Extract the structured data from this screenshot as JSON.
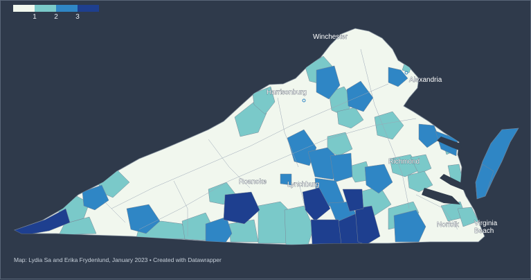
{
  "legend": {
    "colors": [
      "#f1f7ee",
      "#7ac9c9",
      "#2f86c5",
      "#1e3f8f"
    ],
    "labels": [
      "1",
      "2",
      "3"
    ]
  },
  "cities": [
    "Winchester",
    "Alexandria",
    "Harrisonburg",
    "Richmond",
    "Roanoke",
    "Lynchburg",
    "Norfolk",
    "Virginia Beach"
  ],
  "credit": "Map: Lydia Sa and Erika Frydenlund, January 2023 • Created with Datawrapper",
  "colors": {
    "background": "#2f3a4b",
    "border": "#7a8696"
  }
}
